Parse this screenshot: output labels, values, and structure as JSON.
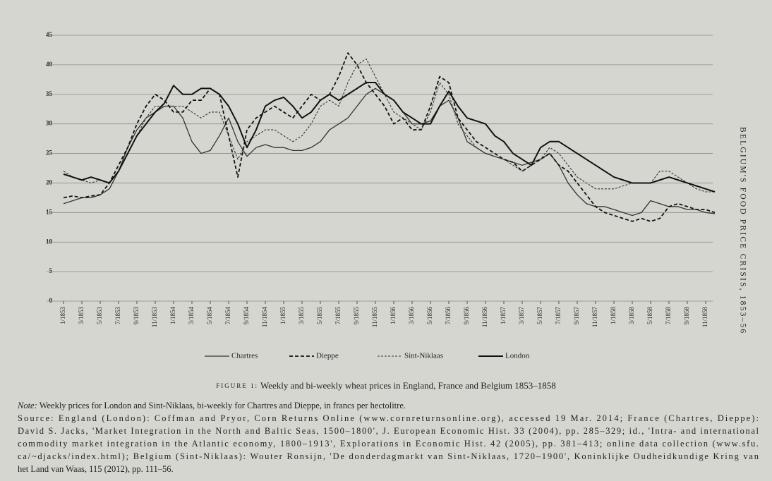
{
  "chart_data": {
    "type": "line",
    "categories": [
      "1/1853",
      null,
      "3/1853",
      null,
      "5/1853",
      null,
      "7/1853",
      null,
      "9/1853",
      null,
      "11/1853",
      null,
      "1/1854",
      null,
      "3/1854",
      null,
      "5/1854",
      null,
      "7/1854",
      null,
      "9/1854",
      null,
      "11/1854",
      null,
      "1/1855",
      null,
      "3/1855",
      null,
      "5/1855",
      null,
      "7/1855",
      null,
      "9/1855",
      null,
      "11/1855",
      null,
      "1/1856",
      null,
      "3/1856",
      null,
      "5/1856",
      null,
      "7/1856",
      null,
      "9/1856",
      null,
      "11/1856",
      null,
      "1/1857",
      null,
      "3/1857",
      null,
      "5/1857",
      null,
      "7/1857",
      null,
      "9/1857",
      null,
      "11/1857",
      null,
      "1/1858",
      null,
      "3/1858",
      null,
      "5/1858",
      null,
      "7/1858",
      null,
      "9/1858",
      null,
      "11/1858",
      null
    ],
    "series": [
      {
        "name": "Chartres",
        "color": "#333333",
        "dash": "solid",
        "width": 1.3,
        "values": [
          16.5,
          17,
          17.5,
          17.5,
          18,
          19,
          22,
          26,
          29,
          31,
          32,
          33,
          33,
          31,
          27,
          25,
          25.5,
          28,
          31,
          27,
          24.5,
          26,
          26.5,
          26,
          26,
          25.5,
          25.5,
          26,
          27,
          29,
          30,
          31,
          33,
          35,
          36,
          35,
          34,
          32,
          30,
          30,
          30.5,
          33,
          34,
          31,
          27,
          26,
          25,
          24.5,
          24,
          23.5,
          23,
          23.5,
          24,
          25,
          23,
          20,
          18,
          16.5,
          16,
          16,
          15.5,
          15,
          14.5,
          15,
          17,
          16.5,
          16,
          16,
          15.5,
          15.5,
          15,
          14.8
        ]
      },
      {
        "name": "Dieppe",
        "color": "#111111",
        "dash": "dashed",
        "width": 1.8,
        "values": [
          17.5,
          17.8,
          17.5,
          17.8,
          18,
          20,
          23,
          26,
          30,
          33,
          35,
          34,
          32,
          32,
          34,
          34,
          36,
          35,
          28,
          21,
          29,
          31,
          32,
          33,
          32,
          31,
          33,
          35,
          34,
          35,
          38,
          42,
          40,
          37,
          35,
          33,
          30,
          31,
          29,
          29,
          33,
          38,
          37,
          31,
          29,
          27,
          26,
          25,
          24,
          23.5,
          22,
          23,
          24,
          25,
          23,
          22,
          20,
          18,
          16,
          15,
          14.5,
          14,
          13.5,
          14,
          13.5,
          14,
          16,
          16.5,
          16,
          15.5,
          15.5,
          15
        ]
      },
      {
        "name": "Sint-Niklaas",
        "color": "#333333",
        "dash": "fine-dashed",
        "width": 1.1,
        "values": [
          22,
          21,
          20.5,
          20,
          20.5,
          20,
          22,
          25,
          28,
          31,
          33,
          33,
          33,
          33,
          32,
          31,
          32,
          32,
          28,
          24,
          27,
          28,
          29,
          29,
          28,
          27,
          28,
          30,
          33,
          34,
          33,
          37,
          40,
          41,
          38,
          35,
          32,
          31,
          30,
          29,
          32,
          37,
          35,
          30,
          28,
          26,
          25,
          24.5,
          24,
          23,
          22,
          23,
          24,
          26,
          25,
          23,
          21,
          20,
          19,
          19,
          19,
          19.5,
          20,
          20,
          20,
          22,
          22,
          21,
          20,
          19,
          18.5,
          18.5
        ]
      },
      {
        "name": "London",
        "color": "#111111",
        "dash": "solid",
        "width": 2,
        "values": [
          21.5,
          21,
          20.5,
          21,
          20.5,
          20,
          22,
          25,
          28,
          30,
          32,
          33.5,
          36.5,
          35,
          35,
          36,
          36,
          35,
          33,
          30,
          26,
          29,
          33,
          34,
          34.5,
          33,
          31,
          32,
          34,
          35,
          34,
          35,
          36,
          37,
          37,
          35,
          34,
          32,
          31,
          30,
          30,
          33,
          35.5,
          33,
          31,
          30.5,
          30,
          28,
          27,
          25,
          24,
          23,
          26,
          27,
          27,
          26,
          25,
          24,
          23,
          22,
          21,
          20.5,
          20,
          20,
          20,
          20.5,
          21,
          20.5,
          20,
          19.5,
          19,
          18.5
        ]
      }
    ],
    "ylim": [
      0,
      45
    ],
    "yticks": [
      0,
      5,
      10,
      15,
      20,
      25,
      30,
      35,
      40,
      45
    ],
    "grid": true,
    "legend": "bottom"
  },
  "caption": {
    "label": "FIGURE 1:",
    "text": "Weekly and bi-weekly wheat prices in England, France and Belgium 1853–1858"
  },
  "note": {
    "label": "Note:",
    "text": "Weekly prices for London and Sint-Niklaas, bi-weekly for Chartres and Dieppe, in francs per hectolitre."
  },
  "source": [
    "Source: England (London): Coffman and Pryor, Corn Returns Online (www.cornreturnsonline.org), accessed 19 Mar. 2014; France (Chartres, Dieppe):",
    "David S. Jacks, 'Market Integration in the North and Baltic Seas, 1500–1800', J. European Economic Hist. 33 (2004), pp. 285–329; id., 'Intra- and international",
    "commodity market integration in the Atlantic economy, 1800–1913', Explorations in Economic Hist. 42 (2005), pp. 381–413; online data collection (www.sfu.",
    "ca/~djacks/index.html); Belgium (Sint-Niklaas): Wouter Ronsijn, 'De donderdagmarkt van Sint-Niklaas, 1720–1900', Koninklijke Oudheidkundige Kring van",
    "het Land van Waas, 115 (2012), pp. 111–56."
  ],
  "running_head": "BELGIUM'S FOOD PRICE CRISIS, 1853–56"
}
